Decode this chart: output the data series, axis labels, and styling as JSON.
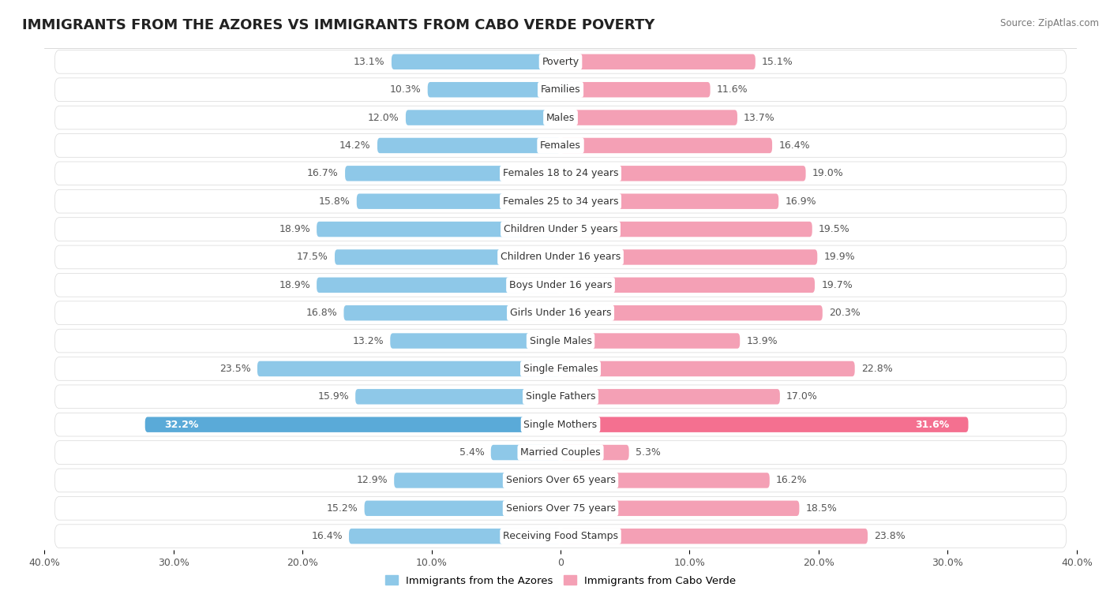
{
  "title": "IMMIGRANTS FROM THE AZORES VS IMMIGRANTS FROM CABO VERDE POVERTY",
  "source": "Source: ZipAtlas.com",
  "categories": [
    "Poverty",
    "Families",
    "Males",
    "Females",
    "Females 18 to 24 years",
    "Females 25 to 34 years",
    "Children Under 5 years",
    "Children Under 16 years",
    "Boys Under 16 years",
    "Girls Under 16 years",
    "Single Males",
    "Single Females",
    "Single Fathers",
    "Single Mothers",
    "Married Couples",
    "Seniors Over 65 years",
    "Seniors Over 75 years",
    "Receiving Food Stamps"
  ],
  "azores_values": [
    13.1,
    10.3,
    12.0,
    14.2,
    16.7,
    15.8,
    18.9,
    17.5,
    18.9,
    16.8,
    13.2,
    23.5,
    15.9,
    32.2,
    5.4,
    12.9,
    15.2,
    16.4
  ],
  "caboverde_values": [
    15.1,
    11.6,
    13.7,
    16.4,
    19.0,
    16.9,
    19.5,
    19.9,
    19.7,
    20.3,
    13.9,
    22.8,
    17.0,
    31.6,
    5.3,
    16.2,
    18.5,
    23.8
  ],
  "azores_color": "#8ec8e8",
  "caboverde_color": "#f4a0b5",
  "azores_highlight_color": "#5aaad8",
  "caboverde_highlight_color": "#f47090",
  "bg_color": "#ffffff",
  "row_bg_color": "#f0f0f0",
  "bar_row_bg": "#e8e8e8",
  "xlim": 40.0,
  "legend_azores": "Immigrants from the Azores",
  "legend_caboverde": "Immigrants from Cabo Verde",
  "value_label_fontsize": 9,
  "category_label_fontsize": 9,
  "title_fontsize": 13
}
